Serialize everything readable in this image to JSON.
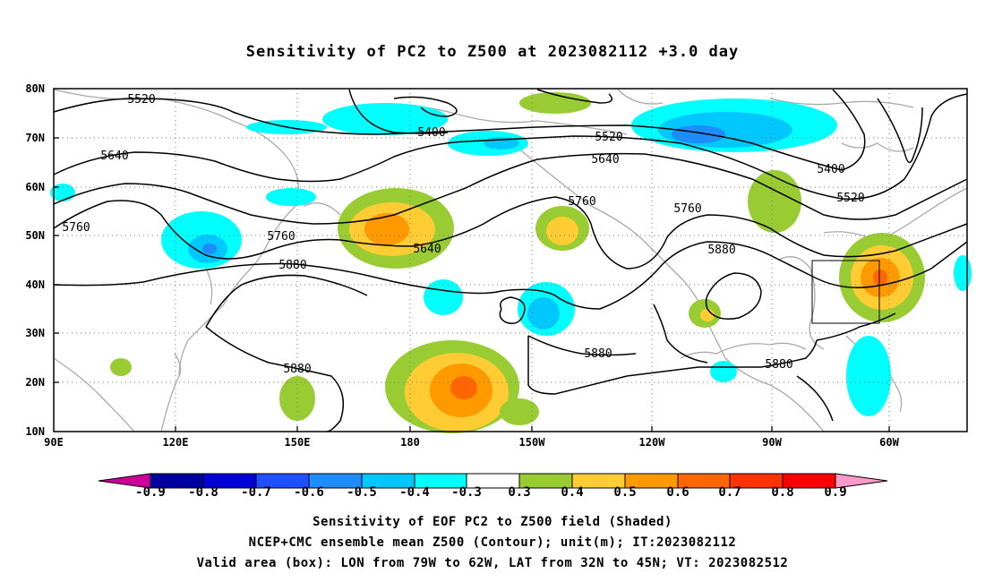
{
  "title": "Sensitivity of PC2 to Z500 at 2023082112 +3.0 day",
  "map": {
    "lat_labels": [
      "80N",
      "70N",
      "60N",
      "50N",
      "40N",
      "30N",
      "20N",
      "10N"
    ],
    "lon_labels": [
      "90E",
      "120E",
      "150E",
      "180",
      "150W",
      "120W",
      "90W",
      "60W"
    ],
    "contour_labels": [
      {
        "text": "5520"
      },
      {
        "text": "5400"
      },
      {
        "text": "5520"
      },
      {
        "text": "5640"
      },
      {
        "text": "5640"
      },
      {
        "text": "5400"
      },
      {
        "text": "5520"
      },
      {
        "text": "5760"
      },
      {
        "text": "5760"
      },
      {
        "text": "5760"
      },
      {
        "text": "5640"
      },
      {
        "text": "5880"
      },
      {
        "text": "5880"
      },
      {
        "text": "5880"
      },
      {
        "text": "5880"
      },
      {
        "text": "5880"
      },
      {
        "text": "5760"
      }
    ],
    "valid_box": {
      "lon_from": "79W",
      "lon_to": "62W",
      "lat_from": "32N",
      "lat_to": "45N"
    }
  },
  "colorbar": {
    "labels": [
      "-0.9",
      "-0.8",
      "-0.7",
      "-0.6",
      "-0.5",
      "-0.4",
      "-0.3",
      "0.3",
      "0.4",
      "0.5",
      "0.6",
      "0.7",
      "0.8",
      "0.9"
    ],
    "colors": [
      "#cc0099",
      "#0000a0",
      "#0000d8",
      "#1e50ff",
      "#1e8cff",
      "#00c8ff",
      "#00ffff",
      "#ffffff",
      "#99cc33",
      "#ffcc33",
      "#ff9900",
      "#ff6600",
      "#ff3300",
      "#ff0000",
      "#ff99cc"
    ]
  },
  "captions": [
    "Sensitivity of EOF PC2 to Z500 field (Shaded)",
    "NCEP+CMC ensemble mean Z500 (Contour); unit(m); IT:2023082112",
    "Valid area (box): LON from 79W to 62W, LAT from 32N to 45N; VT: 2023082512"
  ]
}
